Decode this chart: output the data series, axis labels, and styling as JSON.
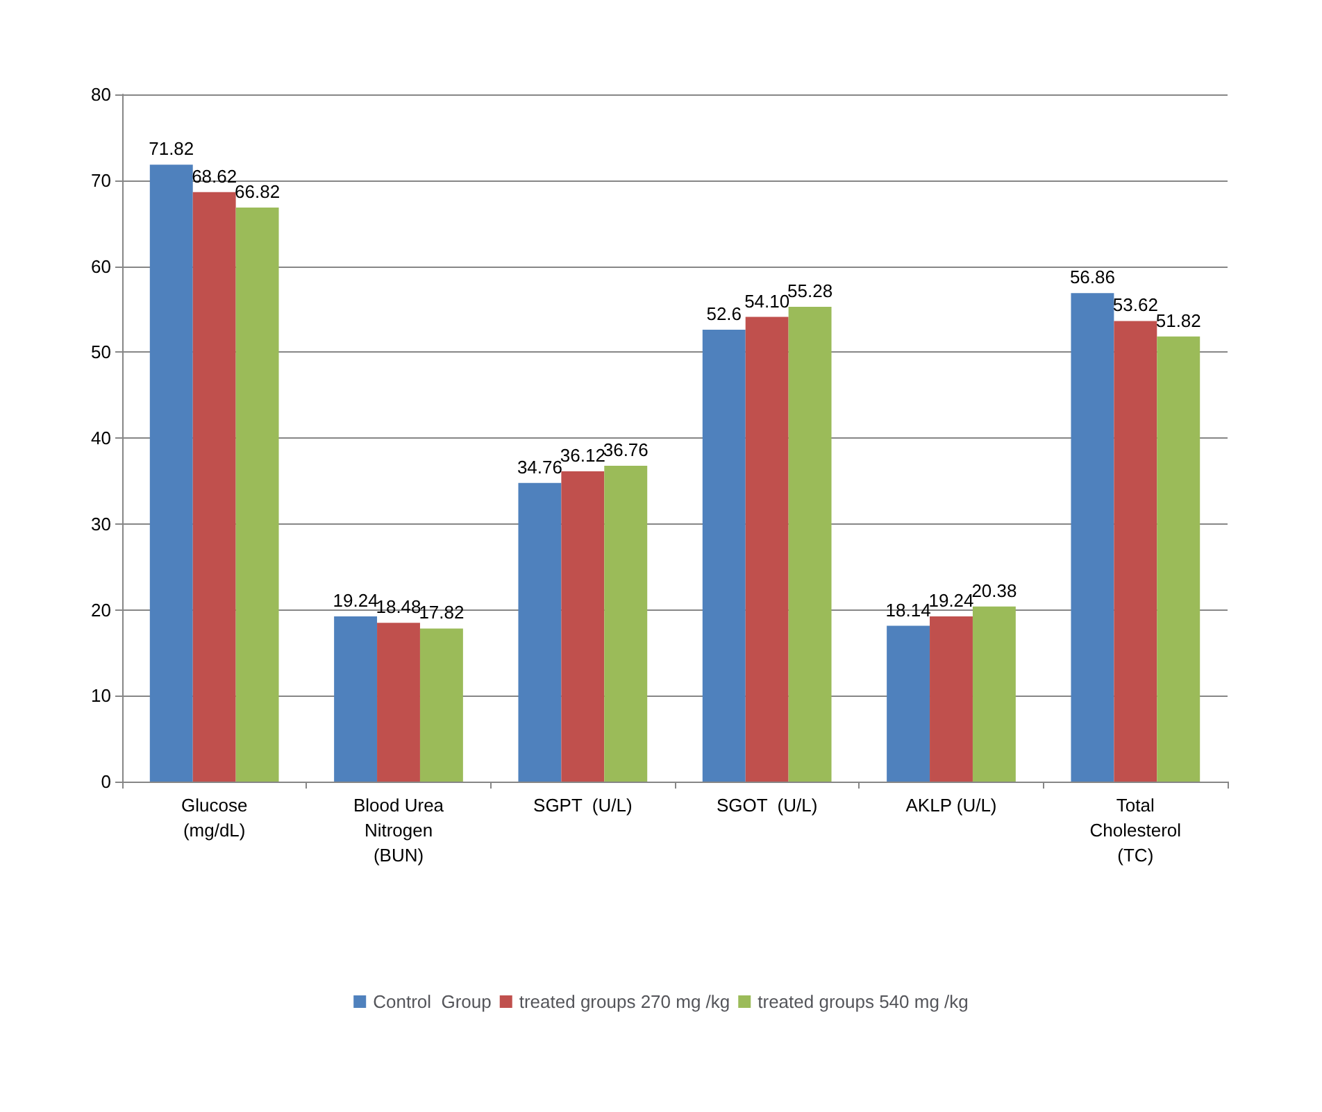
{
  "chart_data": {
    "type": "bar",
    "categories": [
      "Glucose\n(mg/dL)",
      "Blood Urea\nNitrogen\n(BUN)",
      "SGPT  (U/L)",
      "SGOT  (U/L)",
      "AKLP (U/L)",
      "Total\nCholesterol\n(TC)"
    ],
    "series": [
      {
        "name": "Control  Group",
        "color": "#4f81bd",
        "values": [
          71.82,
          19.24,
          34.76,
          52.6,
          18.14,
          56.86
        ],
        "value_labels": [
          "71.82",
          "19.24",
          "34.76",
          "52.6",
          "18.14",
          "56.86"
        ]
      },
      {
        "name": "treated groups 270 mg /kg",
        "color": "#c0504d",
        "values": [
          68.62,
          18.48,
          36.12,
          54.1,
          19.24,
          53.62
        ],
        "value_labels": [
          "68.62",
          "18.48",
          "36.12",
          "54.10",
          "19.24",
          "53.62"
        ]
      },
      {
        "name": "treated groups 540 mg /kg",
        "color": "#9bbb59",
        "values": [
          66.82,
          17.82,
          36.76,
          55.28,
          20.38,
          51.82
        ],
        "value_labels": [
          "66.82",
          "17.82",
          "36.76",
          "55.28",
          "20.38",
          "51.82"
        ]
      }
    ],
    "ylim": [
      0,
      80
    ],
    "yticks": [
      0,
      10,
      20,
      30,
      40,
      50,
      60,
      70,
      80
    ],
    "grid": "y",
    "legend": "bottom"
  }
}
